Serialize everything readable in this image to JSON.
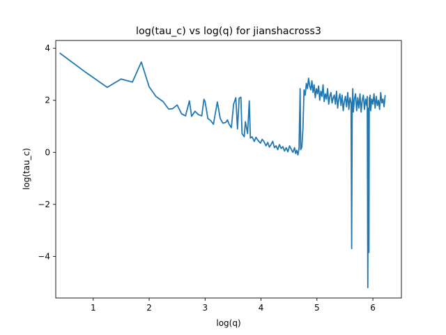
{
  "chart_data": {
    "type": "line",
    "title": "log(tau_c) vs log(q) for jianshacross3",
    "xlabel": "log(q)",
    "ylabel": "log(tau_c)",
    "xlim": [
      0.33,
      6.51
    ],
    "ylim": [
      -5.6,
      4.3
    ],
    "xticks": [
      1,
      2,
      3,
      4,
      5,
      6
    ],
    "yticks": [
      -4,
      -2,
      0,
      2,
      4
    ],
    "xtick_labels": [
      "1",
      "2",
      "3",
      "4",
      "5",
      "6"
    ],
    "ytick_labels": [
      "−4",
      "−2",
      "0",
      "2",
      "4"
    ],
    "grid": false,
    "series": [
      {
        "color": "#1f77b4",
        "x": [
          0.4,
          0.85,
          1.25,
          1.5,
          1.7,
          1.86,
          2.0,
          2.12,
          2.25,
          2.35,
          2.42,
          2.5,
          2.58,
          2.65,
          2.72,
          2.76,
          2.82,
          2.88,
          2.94,
          2.98,
          3.0,
          3.05,
          3.1,
          3.15,
          3.22,
          3.27,
          3.32,
          3.37,
          3.4,
          3.43,
          3.47,
          3.51,
          3.55,
          3.58,
          3.61,
          3.64,
          3.66,
          3.7,
          3.72,
          3.76,
          3.79,
          3.81,
          3.84,
          3.88,
          3.91,
          3.95,
          3.99,
          4.02,
          4.05,
          4.09,
          4.12,
          4.15,
          4.18,
          4.21,
          4.24,
          4.27,
          4.3,
          4.33,
          4.36,
          4.39,
          4.42,
          4.45,
          4.48,
          4.51,
          4.54,
          4.57,
          4.6,
          4.62,
          4.64,
          4.66,
          4.68,
          4.7,
          4.71,
          4.73,
          4.75,
          4.77,
          4.79,
          4.81,
          4.83,
          4.85,
          4.87,
          4.89,
          4.91,
          4.93,
          4.95,
          4.97,
          4.99,
          5.01,
          5.03,
          5.05,
          5.07,
          5.09,
          5.11,
          5.13,
          5.15,
          5.17,
          5.19,
          5.21,
          5.23,
          5.25,
          5.27,
          5.29,
          5.31,
          5.33,
          5.35,
          5.37,
          5.39,
          5.41,
          5.43,
          5.45,
          5.47,
          5.49,
          5.51,
          5.53,
          5.55,
          5.57,
          5.59,
          5.61,
          5.62,
          5.63,
          5.64,
          5.65,
          5.67,
          5.69,
          5.71,
          5.73,
          5.75,
          5.77,
          5.79,
          5.81,
          5.83,
          5.85,
          5.87,
          5.89,
          5.9,
          5.91,
          5.92,
          5.93,
          5.935,
          5.94,
          5.95,
          5.96,
          5.98,
          6.0,
          6.02,
          6.04,
          6.06,
          6.08,
          6.1,
          6.12,
          6.14,
          6.16,
          6.18,
          6.2,
          6.22
        ],
        "y": [
          3.82,
          3.1,
          2.5,
          2.82,
          2.7,
          3.47,
          2.52,
          2.15,
          1.95,
          1.66,
          1.68,
          1.82,
          1.48,
          1.4,
          1.98,
          1.38,
          1.58,
          1.45,
          1.4,
          2.04,
          1.95,
          1.3,
          1.22,
          1.08,
          1.94,
          1.3,
          1.12,
          1.15,
          1.25,
          1.08,
          0.95,
          1.85,
          2.1,
          0.9,
          2.08,
          2.12,
          0.72,
          0.6,
          1.18,
          0.72,
          1.98,
          0.55,
          0.6,
          0.42,
          0.58,
          0.45,
          0.35,
          0.5,
          0.42,
          0.25,
          0.38,
          0.2,
          0.3,
          0.42,
          0.18,
          0.25,
          0.1,
          0.3,
          0.15,
          0.22,
          0.05,
          0.18,
          0.02,
          0.25,
          0.12,
          0.0,
          0.18,
          -0.05,
          0.08,
          -0.1,
          0.15,
          2.45,
          0.1,
          0.2,
          0.9,
          2.4,
          2.2,
          2.65,
          2.45,
          2.85,
          2.55,
          2.4,
          2.75,
          2.3,
          2.6,
          2.1,
          2.45,
          2.25,
          2.55,
          2.0,
          2.35,
          2.15,
          2.6,
          1.95,
          2.25,
          2.05,
          2.45,
          1.85,
          2.15,
          2.3,
          1.9,
          2.1,
          2.2,
          1.85,
          2.35,
          1.7,
          2.05,
          2.25,
          1.8,
          2.2,
          1.6,
          1.95,
          2.15,
          1.75,
          2.3,
          1.65,
          2.1,
          1.9,
          -3.7,
          1.7,
          2.45,
          1.55,
          2.05,
          2.25,
          1.6,
          2.1,
          1.7,
          2.25,
          1.55,
          2.0,
          2.2,
          1.65,
          2.05,
          1.8,
          2.15,
          -5.2,
          1.7,
          -3.85,
          2.1,
          1.75,
          2.2,
          1.6,
          2.05,
          1.85,
          2.25,
          1.7,
          2.15,
          1.8,
          2.0,
          1.65,
          2.3,
          1.9,
          2.05,
          1.75,
          2.2
        ]
      }
    ]
  }
}
